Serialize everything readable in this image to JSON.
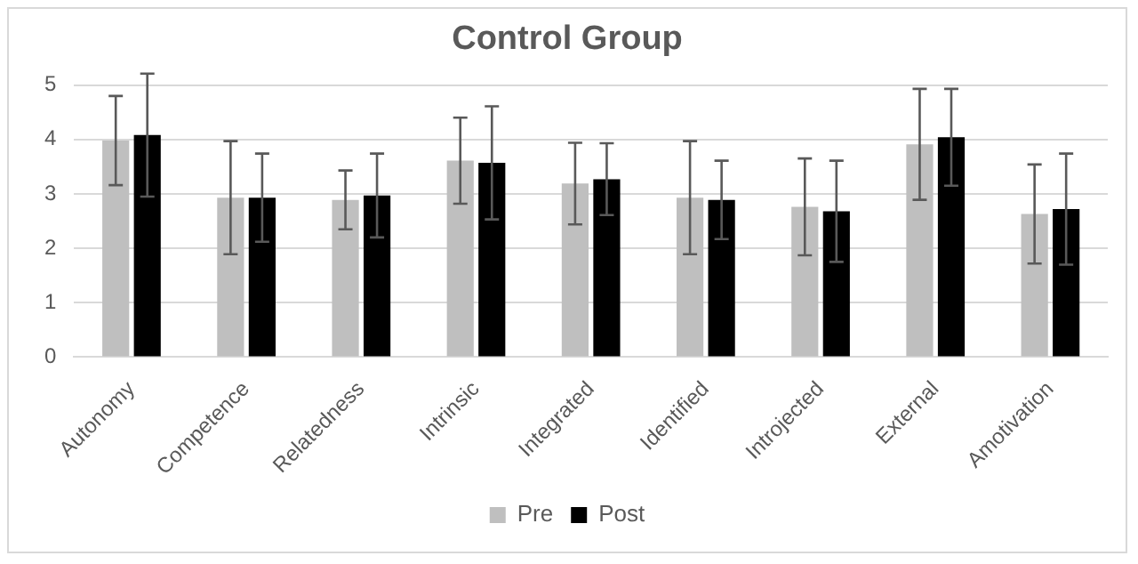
{
  "chart_data": {
    "type": "bar",
    "title": "Control Group",
    "categories": [
      "Autonomy",
      "Competence",
      "Relatedness",
      "Intrinsic",
      "Integrated",
      "Identified",
      "Introjected",
      "External",
      "Amotivation"
    ],
    "series": [
      {
        "name": "Pre",
        "color": "#bfbfbf",
        "values": [
          3.98,
          2.93,
          2.89,
          3.61,
          3.19,
          2.93,
          2.76,
          3.91,
          2.63
        ],
        "errors": [
          0.82,
          1.04,
          0.54,
          0.79,
          0.75,
          1.04,
          0.89,
          1.02,
          0.91
        ]
      },
      {
        "name": "Post",
        "color": "#000000",
        "values": [
          4.08,
          2.93,
          2.97,
          3.57,
          3.27,
          2.89,
          2.68,
          4.04,
          2.72
        ],
        "errors": [
          1.13,
          0.81,
          0.77,
          1.04,
          0.66,
          0.72,
          0.93,
          0.89,
          1.02
        ]
      }
    ],
    "ylim": [
      0,
      5
    ],
    "yticks": [
      0,
      1,
      2,
      3,
      4,
      5
    ],
    "grid": "y",
    "legend": "bottom"
  }
}
